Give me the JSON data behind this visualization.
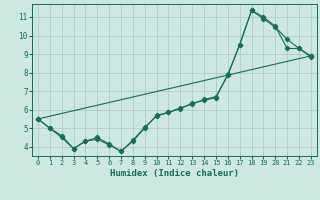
{
  "xlabel": "Humidex (Indice chaleur)",
  "ylabel": "",
  "background_color": "#cce8e0",
  "grid_color": "#aacccc",
  "line_color": "#1a6b5a",
  "xlim": [
    -0.5,
    23.5
  ],
  "ylim": [
    3.5,
    11.7
  ],
  "yticks": [
    4,
    5,
    6,
    7,
    8,
    9,
    10,
    11
  ],
  "xticks": [
    0,
    1,
    2,
    3,
    4,
    5,
    6,
    7,
    8,
    9,
    10,
    11,
    12,
    13,
    14,
    15,
    16,
    17,
    18,
    19,
    20,
    21,
    22,
    23
  ],
  "line1_x": [
    0,
    1,
    2,
    3,
    4,
    5,
    6,
    7,
    8,
    9,
    10,
    11,
    12,
    13,
    14,
    15,
    16,
    17,
    18,
    19,
    20,
    21,
    22,
    23
  ],
  "line1_y": [
    5.5,
    5.0,
    4.5,
    3.9,
    4.3,
    4.4,
    4.1,
    3.75,
    4.3,
    5.0,
    5.7,
    5.85,
    6.1,
    6.3,
    6.55,
    6.7,
    7.85,
    9.5,
    11.35,
    11.0,
    10.5,
    9.3,
    9.3,
    8.9
  ],
  "line2_x": [
    0,
    1,
    2,
    3,
    4,
    5,
    6,
    7,
    8,
    9,
    10,
    11,
    12,
    13,
    14,
    15,
    16,
    17,
    18,
    19,
    20,
    21,
    22,
    23
  ],
  "line2_y": [
    5.5,
    5.0,
    4.6,
    3.9,
    4.3,
    4.5,
    4.15,
    3.75,
    4.35,
    5.05,
    5.65,
    5.85,
    6.05,
    6.35,
    6.5,
    6.65,
    7.9,
    9.5,
    11.35,
    10.9,
    10.45,
    9.8,
    9.3,
    8.85
  ],
  "line3_x": [
    0,
    23
  ],
  "line3_y": [
    5.5,
    8.9
  ],
  "marker_size": 2.2,
  "linewidth": 0.8
}
